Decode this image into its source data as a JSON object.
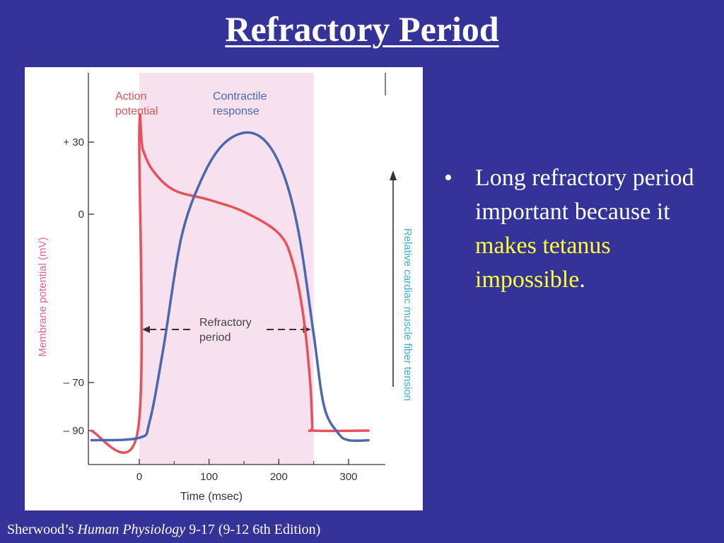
{
  "slide": {
    "title": "Refractory Period",
    "bullet": {
      "marker": "•",
      "text_plain": "Long refractory period important because it ",
      "text_highlight": "makes tetanus impossible",
      "text_end": "."
    },
    "citation": {
      "prefix": "Sherwood’s ",
      "book": "Human Physiology",
      "suffix": " 9-17 (9-12 6th Edition)"
    }
  },
  "colors": {
    "background": "#343399",
    "highlight": "#ffff33",
    "action_potential": "#e8505a",
    "contractile_response": "#4a68b0",
    "refractory_band": "#f7e1ee",
    "left_axis_label": "#e8609a",
    "right_axis_label": "#3ab0d0"
  },
  "chart_data": {
    "type": "line",
    "xlabel": "Time (msec)",
    "ylabel": "Membrane potential (mV)",
    "ylabel_right": "Relative cardiac muscle fiber tension",
    "xlim": [
      0,
      350
    ],
    "ylim": [
      -100,
      40
    ],
    "x_ticks": [
      "0",
      "100",
      "200",
      "300"
    ],
    "y_ticks": [
      "+ 30",
      "0",
      "– 70",
      "– 90"
    ],
    "refractory_period": {
      "start": 0,
      "end": 250,
      "label_line1": "Refractory",
      "label_line2": "period"
    },
    "series": [
      {
        "name": "Action potential",
        "label_line1": "Action",
        "label_line2": "potential",
        "x": [
          -70,
          -2,
          0,
          5,
          20,
          50,
          100,
          150,
          200,
          220,
          235,
          245,
          248,
          250,
          330
        ],
        "y": [
          -90,
          -90,
          34,
          27,
          18,
          10,
          6,
          1,
          -8,
          -20,
          -42,
          -70,
          -88,
          -90,
          -90
        ]
      },
      {
        "name": "Contractile response",
        "label_line1": "Contractile",
        "label_line2": "response",
        "x": [
          -70,
          0,
          15,
          35,
          60,
          90,
          120,
          155,
          185,
          210,
          230,
          250,
          265,
          285,
          300,
          330
        ],
        "y": [
          -94,
          -93,
          -86,
          -55,
          -10,
          15,
          29,
          34,
          29,
          14,
          -10,
          -50,
          -80,
          -91,
          -94,
          -94
        ]
      }
    ]
  }
}
